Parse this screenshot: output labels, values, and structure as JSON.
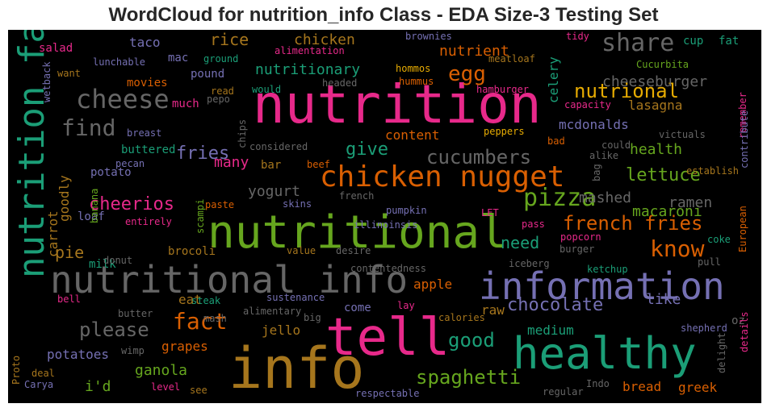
{
  "title": "WordCloud for nutrition_info Class - EDA Size-3 Testing Set",
  "palette": {
    "pink": "#e7298a",
    "green": "#66a61e",
    "teal": "#1b9e77",
    "purple": "#7570b3",
    "orange": "#d95f02",
    "gold": "#a6761d",
    "yellow": "#e6ab02",
    "gray": "#666666",
    "background": "#000000"
  },
  "words": [
    {
      "text": "nutrition",
      "color": "pink",
      "rot": false
    },
    {
      "text": "nutritional",
      "color": "green",
      "rot": false
    },
    {
      "text": "info",
      "color": "gold",
      "rot": false
    },
    {
      "text": "tell",
      "color": "pink",
      "rot": false
    },
    {
      "text": "healthy",
      "color": "teal",
      "rot": false
    },
    {
      "text": "information",
      "color": "purple",
      "rot": false
    },
    {
      "text": "nutritional info",
      "color": "gray",
      "rot": false
    },
    {
      "text": "nutrition fact",
      "color": "teal",
      "rot": true
    },
    {
      "text": "chicken nugget",
      "color": "orange",
      "rot": false
    },
    {
      "text": "cheese",
      "color": "gray",
      "rot": false
    },
    {
      "text": "share",
      "color": "gray",
      "rot": false
    },
    {
      "text": "find",
      "color": "gray",
      "rot": false
    },
    {
      "text": "pizza",
      "color": "green",
      "rot": false
    },
    {
      "text": "french fries",
      "color": "orange",
      "rot": false
    },
    {
      "text": "cucumbers",
      "color": "gray",
      "rot": false
    },
    {
      "text": "cheerios",
      "color": "pink",
      "rot": false
    },
    {
      "text": "know",
      "color": "orange",
      "rot": false
    },
    {
      "text": "nutrional",
      "color": "yellow",
      "rot": false
    },
    {
      "text": "spaghetti",
      "color": "green",
      "rot": false
    },
    {
      "text": "chocolate",
      "color": "purple",
      "rot": false
    },
    {
      "text": "please",
      "color": "gray",
      "rot": false
    },
    {
      "text": "fact",
      "color": "orange",
      "rot": false
    },
    {
      "text": "good",
      "color": "teal",
      "rot": false
    },
    {
      "text": "give",
      "color": "teal",
      "rot": false
    },
    {
      "text": "lettuce",
      "color": "green",
      "rot": false
    },
    {
      "text": "egg",
      "color": "orange",
      "rot": false
    },
    {
      "text": "fries",
      "color": "purple",
      "rot": false
    },
    {
      "text": "chicken",
      "color": "gold",
      "rot": false
    },
    {
      "text": "cheeseburger",
      "color": "gray",
      "rot": false
    },
    {
      "text": "nutrient",
      "color": "orange",
      "rot": false
    },
    {
      "text": "nutritionary",
      "color": "teal",
      "rot": false
    },
    {
      "text": "rice",
      "color": "gold",
      "rot": false
    },
    {
      "text": "yogurt",
      "color": "gray",
      "rot": false
    },
    {
      "text": "mashed",
      "color": "gray",
      "rot": false
    },
    {
      "text": "macaroni",
      "color": "green",
      "rot": false
    },
    {
      "text": "ramen",
      "color": "gray",
      "rot": false
    },
    {
      "text": "need",
      "color": "teal",
      "rot": false
    },
    {
      "text": "health",
      "color": "green",
      "rot": false
    },
    {
      "text": "pie",
      "color": "gold",
      "rot": false
    },
    {
      "text": "apple",
      "color": "orange",
      "rot": false
    },
    {
      "text": "like",
      "color": "purple",
      "rot": false
    },
    {
      "text": "raw",
      "color": "gold",
      "rot": false
    },
    {
      "text": "many",
      "color": "pink",
      "rot": false
    },
    {
      "text": "ganola",
      "color": "green",
      "rot": false
    },
    {
      "text": "i'd",
      "color": "green",
      "rot": false
    },
    {
      "text": "grapes",
      "color": "orange",
      "rot": false
    },
    {
      "text": "medium",
      "color": "teal",
      "rot": false
    },
    {
      "text": "greek",
      "color": "orange",
      "rot": false
    },
    {
      "text": "bread",
      "color": "orange",
      "rot": false
    },
    {
      "text": "potatoes",
      "color": "purple",
      "rot": false
    },
    {
      "text": "eat",
      "color": "gold",
      "rot": false
    },
    {
      "text": "milk",
      "color": "teal",
      "rot": false
    },
    {
      "text": "lasagna",
      "color": "gold",
      "rot": false
    },
    {
      "text": "mcdonalds",
      "color": "purple",
      "rot": false
    },
    {
      "text": "celery",
      "color": "teal",
      "rot": true
    },
    {
      "text": "taco",
      "color": "purple",
      "rot": false
    },
    {
      "text": "salad",
      "color": "pink",
      "rot": false
    },
    {
      "text": "mac",
      "color": "purple",
      "rot": false
    },
    {
      "text": "pound",
      "color": "purple",
      "rot": false
    },
    {
      "text": "movies",
      "color": "orange",
      "rot": false
    },
    {
      "text": "much",
      "color": "pink",
      "rot": false
    },
    {
      "text": "buttered",
      "color": "teal",
      "rot": false
    },
    {
      "text": "potato",
      "color": "purple",
      "rot": false
    },
    {
      "text": "loaf",
      "color": "purple",
      "rot": false
    },
    {
      "text": "brocoli",
      "color": "gold",
      "rot": false
    },
    {
      "text": "jello",
      "color": "gold",
      "rot": false
    },
    {
      "text": "content",
      "color": "orange",
      "rot": false
    },
    {
      "text": "bar",
      "color": "gold",
      "rot": false
    },
    {
      "text": "cup",
      "color": "teal",
      "rot": false
    },
    {
      "text": "fat",
      "color": "teal",
      "rot": false
    },
    {
      "text": "oz",
      "color": "gray",
      "rot": false
    },
    {
      "text": "come",
      "color": "purple",
      "rot": false
    },
    {
      "text": "carrot",
      "color": "gold",
      "rot": true
    },
    {
      "text": "goodly",
      "color": "gold",
      "rot": true
    },
    {
      "text": "lunchable",
      "color": "purple",
      "rot": false
    },
    {
      "text": "ground",
      "color": "teal",
      "rot": false
    },
    {
      "text": "alimentation",
      "color": "pink",
      "rot": false
    },
    {
      "text": "brownies",
      "color": "purple",
      "rot": false
    },
    {
      "text": "tidy",
      "color": "pink",
      "rot": false
    },
    {
      "text": "meatloaf",
      "color": "gold",
      "rot": false
    },
    {
      "text": "hommos",
      "color": "yellow",
      "rot": false
    },
    {
      "text": "hummus",
      "color": "orange",
      "rot": false
    },
    {
      "text": "Cucurbita",
      "color": "green",
      "rot": false
    },
    {
      "text": "capacity",
      "color": "pink",
      "rot": false
    },
    {
      "text": "remember",
      "color": "pink",
      "rot": true
    },
    {
      "text": "contribute",
      "color": "purple",
      "rot": true
    },
    {
      "text": "hamburger",
      "color": "pink",
      "rot": false
    },
    {
      "text": "peppers",
      "color": "yellow",
      "rot": false
    },
    {
      "text": "victuals",
      "color": "gray",
      "rot": false
    },
    {
      "text": "could",
      "color": "gray",
      "rot": false
    },
    {
      "text": "bad",
      "color": "orange",
      "rot": false
    },
    {
      "text": "alike",
      "color": "gray",
      "rot": false
    },
    {
      "text": "bag",
      "color": "gray",
      "rot": true
    },
    {
      "text": "establish",
      "color": "gold",
      "rot": false
    },
    {
      "text": "want",
      "color": "gold",
      "rot": false
    },
    {
      "text": "read",
      "color": "gold",
      "rot": false
    },
    {
      "text": "would",
      "color": "teal",
      "rot": false
    },
    {
      "text": "headed",
      "color": "gray",
      "rot": false
    },
    {
      "text": "pepo",
      "color": "gray",
      "rot": false
    },
    {
      "text": "breast",
      "color": "purple",
      "rot": false
    },
    {
      "text": "chips",
      "color": "gray",
      "rot": true
    },
    {
      "text": "considered",
      "color": "gray",
      "rot": false
    },
    {
      "text": "beef",
      "color": "orange",
      "rot": false
    },
    {
      "text": "pecan",
      "color": "purple",
      "rot": false
    },
    {
      "text": "scampi",
      "color": "green",
      "rot": true
    },
    {
      "text": "french",
      "color": "gray",
      "rot": false
    },
    {
      "text": "pumpkin",
      "color": "purple",
      "rot": false
    },
    {
      "text": "illinoinsis",
      "color": "purple",
      "rot": false
    },
    {
      "text": "skins",
      "color": "purple",
      "rot": false
    },
    {
      "text": "paste",
      "color": "orange",
      "rot": false
    },
    {
      "text": "LET",
      "color": "pink",
      "rot": false
    },
    {
      "text": "pass",
      "color": "pink",
      "rot": false
    },
    {
      "text": "popcorn",
      "color": "pink",
      "rot": false
    },
    {
      "text": "coke",
      "color": "teal",
      "rot": false
    },
    {
      "text": "European",
      "color": "orange",
      "rot": true
    },
    {
      "text": "entirely",
      "color": "pink",
      "rot": false
    },
    {
      "text": "banana",
      "color": "green",
      "rot": true
    },
    {
      "text": "donut",
      "color": "gray",
      "rot": false
    },
    {
      "text": "value",
      "color": "gold",
      "rot": false
    },
    {
      "text": "desire",
      "color": "gray",
      "rot": false
    },
    {
      "text": "iceberg",
      "color": "gray",
      "rot": false
    },
    {
      "text": "burger",
      "color": "gray",
      "rot": false
    },
    {
      "text": "pull",
      "color": "gray",
      "rot": false
    },
    {
      "text": "contentedness",
      "color": "gray",
      "rot": false
    },
    {
      "text": "ketchup",
      "color": "teal",
      "rot": false
    },
    {
      "text": "bell",
      "color": "pink",
      "rot": false
    },
    {
      "text": "steak",
      "color": "teal",
      "rot": false
    },
    {
      "text": "sustenance",
      "color": "purple",
      "rot": false
    },
    {
      "text": "lay",
      "color": "pink",
      "rot": false
    },
    {
      "text": "butter",
      "color": "gray",
      "rot": false
    },
    {
      "text": "alimentary",
      "color": "gray",
      "rot": false
    },
    {
      "text": "mash",
      "color": "gray",
      "rot": false
    },
    {
      "text": "big",
      "color": "gray",
      "rot": false
    },
    {
      "text": "calories",
      "color": "gold",
      "rot": false
    },
    {
      "text": "shepherd",
      "color": "purple",
      "rot": false
    },
    {
      "text": "details",
      "color": "pink",
      "rot": true
    },
    {
      "text": "wimp",
      "color": "gray",
      "rot": false
    },
    {
      "text": "deal",
      "color": "gold",
      "rot": false
    },
    {
      "text": "Carya",
      "color": "purple",
      "rot": false
    },
    {
      "text": "level",
      "color": "pink",
      "rot": false
    },
    {
      "text": "see",
      "color": "gold",
      "rot": false
    },
    {
      "text": "respectable",
      "color": "purple",
      "rot": false
    },
    {
      "text": "regular",
      "color": "gray",
      "rot": false
    },
    {
      "text": "Indo",
      "color": "gray",
      "rot": false
    },
    {
      "text": "delight",
      "color": "gray",
      "rot": true
    },
    {
      "text": "Proto",
      "color": "gold",
      "rot": true
    },
    {
      "text": "wetback",
      "color": "purple",
      "rot": true
    }
  ]
}
